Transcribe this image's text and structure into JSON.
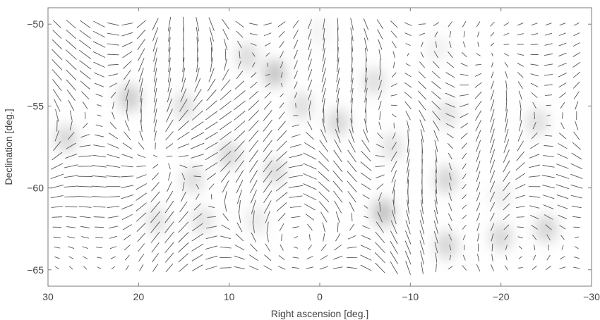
{
  "chart_data": {
    "type": "scatter",
    "title": "",
    "xlabel": "Right ascension [deg.]",
    "ylabel": "Declination [deg.]",
    "xlim": [
      30,
      -30
    ],
    "ylim": [
      -66,
      -49
    ],
    "x_ticks": [
      30,
      20,
      10,
      0,
      -10,
      -20,
      -30
    ],
    "y_ticks": [
      -50,
      -55,
      -60,
      -65
    ],
    "x_tick_labels": [
      "30",
      "20",
      "10",
      "0",
      "−10",
      "−20",
      "−30"
    ],
    "y_tick_labels": [
      "−50",
      "−55",
      "−60",
      "−65"
    ],
    "grid": false,
    "legend": "none",
    "colors": {
      "frame": "#7a7a7a",
      "stick": "#555555",
      "blob": "#8a8a8a",
      "text": "#444444"
    },
    "grid_ra_start": 29,
    "grid_ra_step": 1.55,
    "grid_dec_start": -50,
    "grid_dec_step": 0.62,
    "vortices": [
      {
        "ra": 28,
        "dec": -57,
        "strength": 1.0,
        "shade": 0.55
      },
      {
        "ra": 21,
        "dec": -54.5,
        "strength": 1.2,
        "shade": 0.7
      },
      {
        "ra": 15,
        "dec": -55,
        "strength": -0.9,
        "shade": 0.45
      },
      {
        "ra": 19,
        "dec": -51,
        "strength": 0.6,
        "shade": 0.0
      },
      {
        "ra": 8,
        "dec": -52,
        "strength": -1.4,
        "shade": 0.5
      },
      {
        "ra": 5,
        "dec": -53,
        "strength": 1.1,
        "shade": 0.8
      },
      {
        "ra": 2,
        "dec": -55,
        "strength": -0.8,
        "shade": 0.45
      },
      {
        "ra": 10,
        "dec": -58,
        "strength": 1.0,
        "shade": 0.55
      },
      {
        "ra": 5,
        "dec": -59,
        "strength": -1.0,
        "shade": 0.5
      },
      {
        "ra": 14,
        "dec": -59.5,
        "strength": 0.7,
        "shade": 0.45
      },
      {
        "ra": -6,
        "dec": -53.5,
        "strength": 0.9,
        "shade": 0.45
      },
      {
        "ra": -2,
        "dec": -56,
        "strength": -0.8,
        "shade": 0.55
      },
      {
        "ra": -8,
        "dec": -57.5,
        "strength": 0.9,
        "shade": 0.4
      },
      {
        "ra": -14,
        "dec": -55.5,
        "strength": -0.8,
        "shade": 0.4
      },
      {
        "ra": -24,
        "dec": -56,
        "strength": 0.9,
        "shade": 0.45
      },
      {
        "ra": -14,
        "dec": -59.5,
        "strength": -1.1,
        "shade": 0.6
      },
      {
        "ra": -7,
        "dec": -61.5,
        "strength": 1.5,
        "shade": 0.85
      },
      {
        "ra": -14,
        "dec": -63.5,
        "strength": -1.3,
        "shade": 0.6
      },
      {
        "ra": -20,
        "dec": -63,
        "strength": 0.9,
        "shade": 0.55
      },
      {
        "ra": -25,
        "dec": -62.5,
        "strength": -1.1,
        "shade": 0.6
      },
      {
        "ra": -20,
        "dec": -60.5,
        "strength": 0.6,
        "shade": 0.25
      },
      {
        "ra": 13,
        "dec": -62,
        "strength": 0.6,
        "shade": 0.4
      },
      {
        "ra": 18,
        "dec": -62,
        "strength": -0.5,
        "shade": 0.4
      },
      {
        "ra": 7,
        "dec": -62,
        "strength": 0.5,
        "shade": 0.3
      },
      {
        "ra": -13,
        "dec": -51.5,
        "strength": 0.5,
        "shade": 0.2
      },
      {
        "ra": 0,
        "dec": -50.5,
        "strength": -0.5,
        "shade": 0.15
      }
    ]
  }
}
